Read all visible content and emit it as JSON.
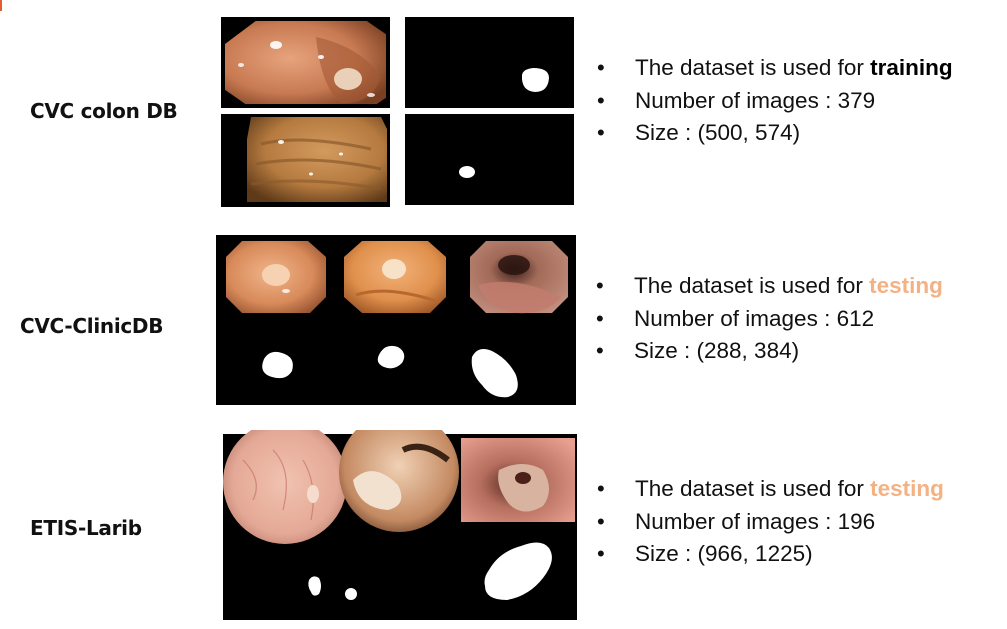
{
  "colors": {
    "accent": "#e35d32",
    "testing_highlight": "#f4b183",
    "mask_background": "#000000",
    "mask_foreground": "#ffffff"
  },
  "datasets": [
    {
      "name": "CVC colon DB",
      "usage_prefix": "The dataset is used for ",
      "usage": "training",
      "usage_style": "bold",
      "images_line": "Number of images : 379",
      "size_line": "Size : (500, 574)"
    },
    {
      "name": "CVC-ClinicDB",
      "usage_prefix": "The dataset is used for ",
      "usage": "testing",
      "usage_style": "orange",
      "images_line": "Number of images : 612",
      "size_line": "Size : (288, 384)"
    },
    {
      "name": "ETIS-Larib",
      "usage_prefix": "The dataset is used for ",
      "usage": "testing",
      "usage_style": "orange",
      "images_line": "Number of images : 196",
      "size_line": "Size : (966, 1225)"
    }
  ]
}
